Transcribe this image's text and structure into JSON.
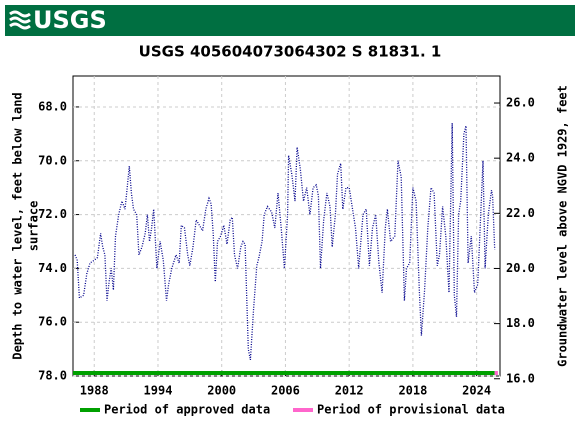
{
  "header": {
    "logo": "USGS"
  },
  "chart_data": {
    "type": "line",
    "title": "USGS 405604073064302 S 81831. 1",
    "y_label": [
      "Depth to water level, feet below land",
      "surface"
    ],
    "y2_label": "Groundwater level above NGVD 1929, feet",
    "color": "#00008b",
    "xlim": [
      1986.0,
      2026.2
    ],
    "xticks": [
      1988,
      1994,
      2000,
      2006,
      2012,
      2018,
      2024
    ],
    "ylim": [
      78,
      66.85
    ],
    "yticks": [
      {
        "value": 68,
        "label": "68.0"
      },
      {
        "value": 70,
        "label": "70.0"
      },
      {
        "value": 72,
        "label": "72.0"
      },
      {
        "value": 74,
        "label": "74.0"
      },
      {
        "value": 76,
        "label": "76.0"
      },
      {
        "value": 78,
        "label": "78.0"
      }
    ],
    "y2lim": [
      16.1,
      26.98
    ],
    "y2ticks": [
      {
        "value": 16,
        "label": "16.0"
      },
      {
        "value": 18,
        "label": "18.0"
      },
      {
        "value": 20,
        "label": "20.0"
      },
      {
        "value": 22,
        "label": "22.0"
      },
      {
        "value": 24,
        "label": "24.0"
      },
      {
        "value": 26,
        "label": "26.0"
      }
    ],
    "grid": true,
    "x": [
      1986.2,
      1986.4,
      1986.6,
      1987.0,
      1987.3,
      1987.6,
      1988.0,
      1988.3,
      1988.6,
      1988.8,
      1989.0,
      1989.2,
      1989.4,
      1989.6,
      1989.8,
      1990.0,
      1990.3,
      1990.6,
      1990.9,
      1991.1,
      1991.3,
      1991.5,
      1991.7,
      1992.0,
      1992.2,
      1992.5,
      1992.8,
      1993.0,
      1993.2,
      1993.4,
      1993.6,
      1993.9,
      1994.2,
      1994.5,
      1994.8,
      1995.0,
      1995.3,
      1995.7,
      1996.0,
      1996.2,
      1996.5,
      1996.8,
      1997.0,
      1997.3,
      1997.6,
      1997.9,
      1998.2,
      1998.5,
      1998.8,
      1999.0,
      1999.2,
      1999.4,
      1999.6,
      1999.9,
      2000.2,
      2000.5,
      2000.8,
      2001.0,
      2001.2,
      2001.5,
      2001.8,
      2002.0,
      2002.2,
      2002.5,
      2002.7,
      2003.0,
      2003.3,
      2003.5,
      2003.8,
      2004.0,
      2004.3,
      2004.7,
      2005.0,
      2005.3,
      2005.6,
      2005.9,
      2006.2,
      2006.3,
      2006.6,
      2006.9,
      2007.1,
      2007.4,
      2007.7,
      2008.0,
      2008.3,
      2008.6,
      2008.9,
      2009.1,
      2009.3,
      2009.6,
      2009.9,
      2010.2,
      2010.4,
      2010.7,
      2010.9,
      2011.2,
      2011.4,
      2011.7,
      2012.0,
      2012.6,
      2012.9,
      2013.3,
      2013.6,
      2013.9,
      2014.2,
      2014.5,
      2014.8,
      2015.1,
      2015.4,
      2015.6,
      2015.9,
      2016.3,
      2016.6,
      2016.9,
      2017.2,
      2017.4,
      2017.7,
      2018.0,
      2018.3,
      2018.6,
      2018.8,
      2019.1,
      2019.4,
      2019.7,
      2020.0,
      2020.3,
      2020.5,
      2020.8,
      2021.1,
      2021.4,
      2021.7,
      2021.9,
      2022.1,
      2022.3,
      2022.5,
      2022.8,
      2023.0,
      2023.2,
      2023.5,
      2023.8,
      2024.1,
      2024.3,
      2024.6,
      2024.8,
      2025.1,
      2025.4,
      2025.5,
      2025.7
    ],
    "values": [
      73.5,
      73.7,
      75.1,
      75.0,
      74.2,
      73.8,
      73.7,
      73.6,
      72.7,
      73.2,
      73.5,
      75.2,
      74.5,
      74.0,
      74.8,
      72.8,
      72.0,
      71.5,
      71.8,
      71.0,
      70.2,
      71.2,
      71.8,
      72.0,
      73.5,
      73.2,
      72.7,
      72.0,
      73.0,
      72.5,
      71.8,
      74.0,
      73.0,
      73.7,
      75.2,
      74.6,
      74.0,
      73.5,
      73.8,
      72.4,
      72.5,
      73.5,
      73.9,
      73.2,
      72.2,
      72.4,
      72.6,
      71.8,
      71.4,
      71.6,
      72.7,
      74.5,
      73.0,
      72.8,
      72.4,
      73.1,
      72.2,
      72.1,
      73.5,
      74.0,
      73.2,
      73.0,
      73.1,
      77.0,
      77.4,
      75.5,
      73.9,
      73.6,
      73.0,
      72.0,
      71.7,
      71.9,
      72.5,
      71.2,
      72.5,
      74.0,
      72.0,
      69.8,
      70.5,
      71.5,
      69.5,
      70.3,
      71.5,
      71.0,
      72.0,
      71.0,
      70.9,
      71.3,
      74.0,
      72.2,
      71.2,
      71.7,
      73.2,
      72.0,
      70.5,
      70.1,
      71.8,
      71.0,
      71.0,
      72.5,
      74.0,
      72.0,
      71.8,
      73.9,
      72.5,
      72.0,
      73.8,
      74.9,
      72.5,
      71.8,
      73.0,
      72.8,
      70.0,
      70.6,
      75.2,
      74.0,
      73.8,
      71.0,
      71.5,
      74.8,
      76.5,
      74.8,
      72.5,
      71.0,
      71.2,
      73.9,
      73.5,
      71.7,
      72.8,
      74.9,
      68.6,
      75.0,
      75.8,
      72.0,
      71.5,
      69.0,
      68.7,
      73.8,
      72.8,
      74.9,
      74.6,
      72.8,
      70.0,
      74.0,
      72.0,
      71.1,
      71.3,
      73.3
    ],
    "periods": [
      {
        "name": "Period of approved data",
        "color": "#00a000",
        "start": 1986.0,
        "end": 2025.7
      },
      {
        "name": "Period of provisional data",
        "color": "#ff66cc",
        "start": 2025.7,
        "end": 2026.0
      }
    ]
  }
}
